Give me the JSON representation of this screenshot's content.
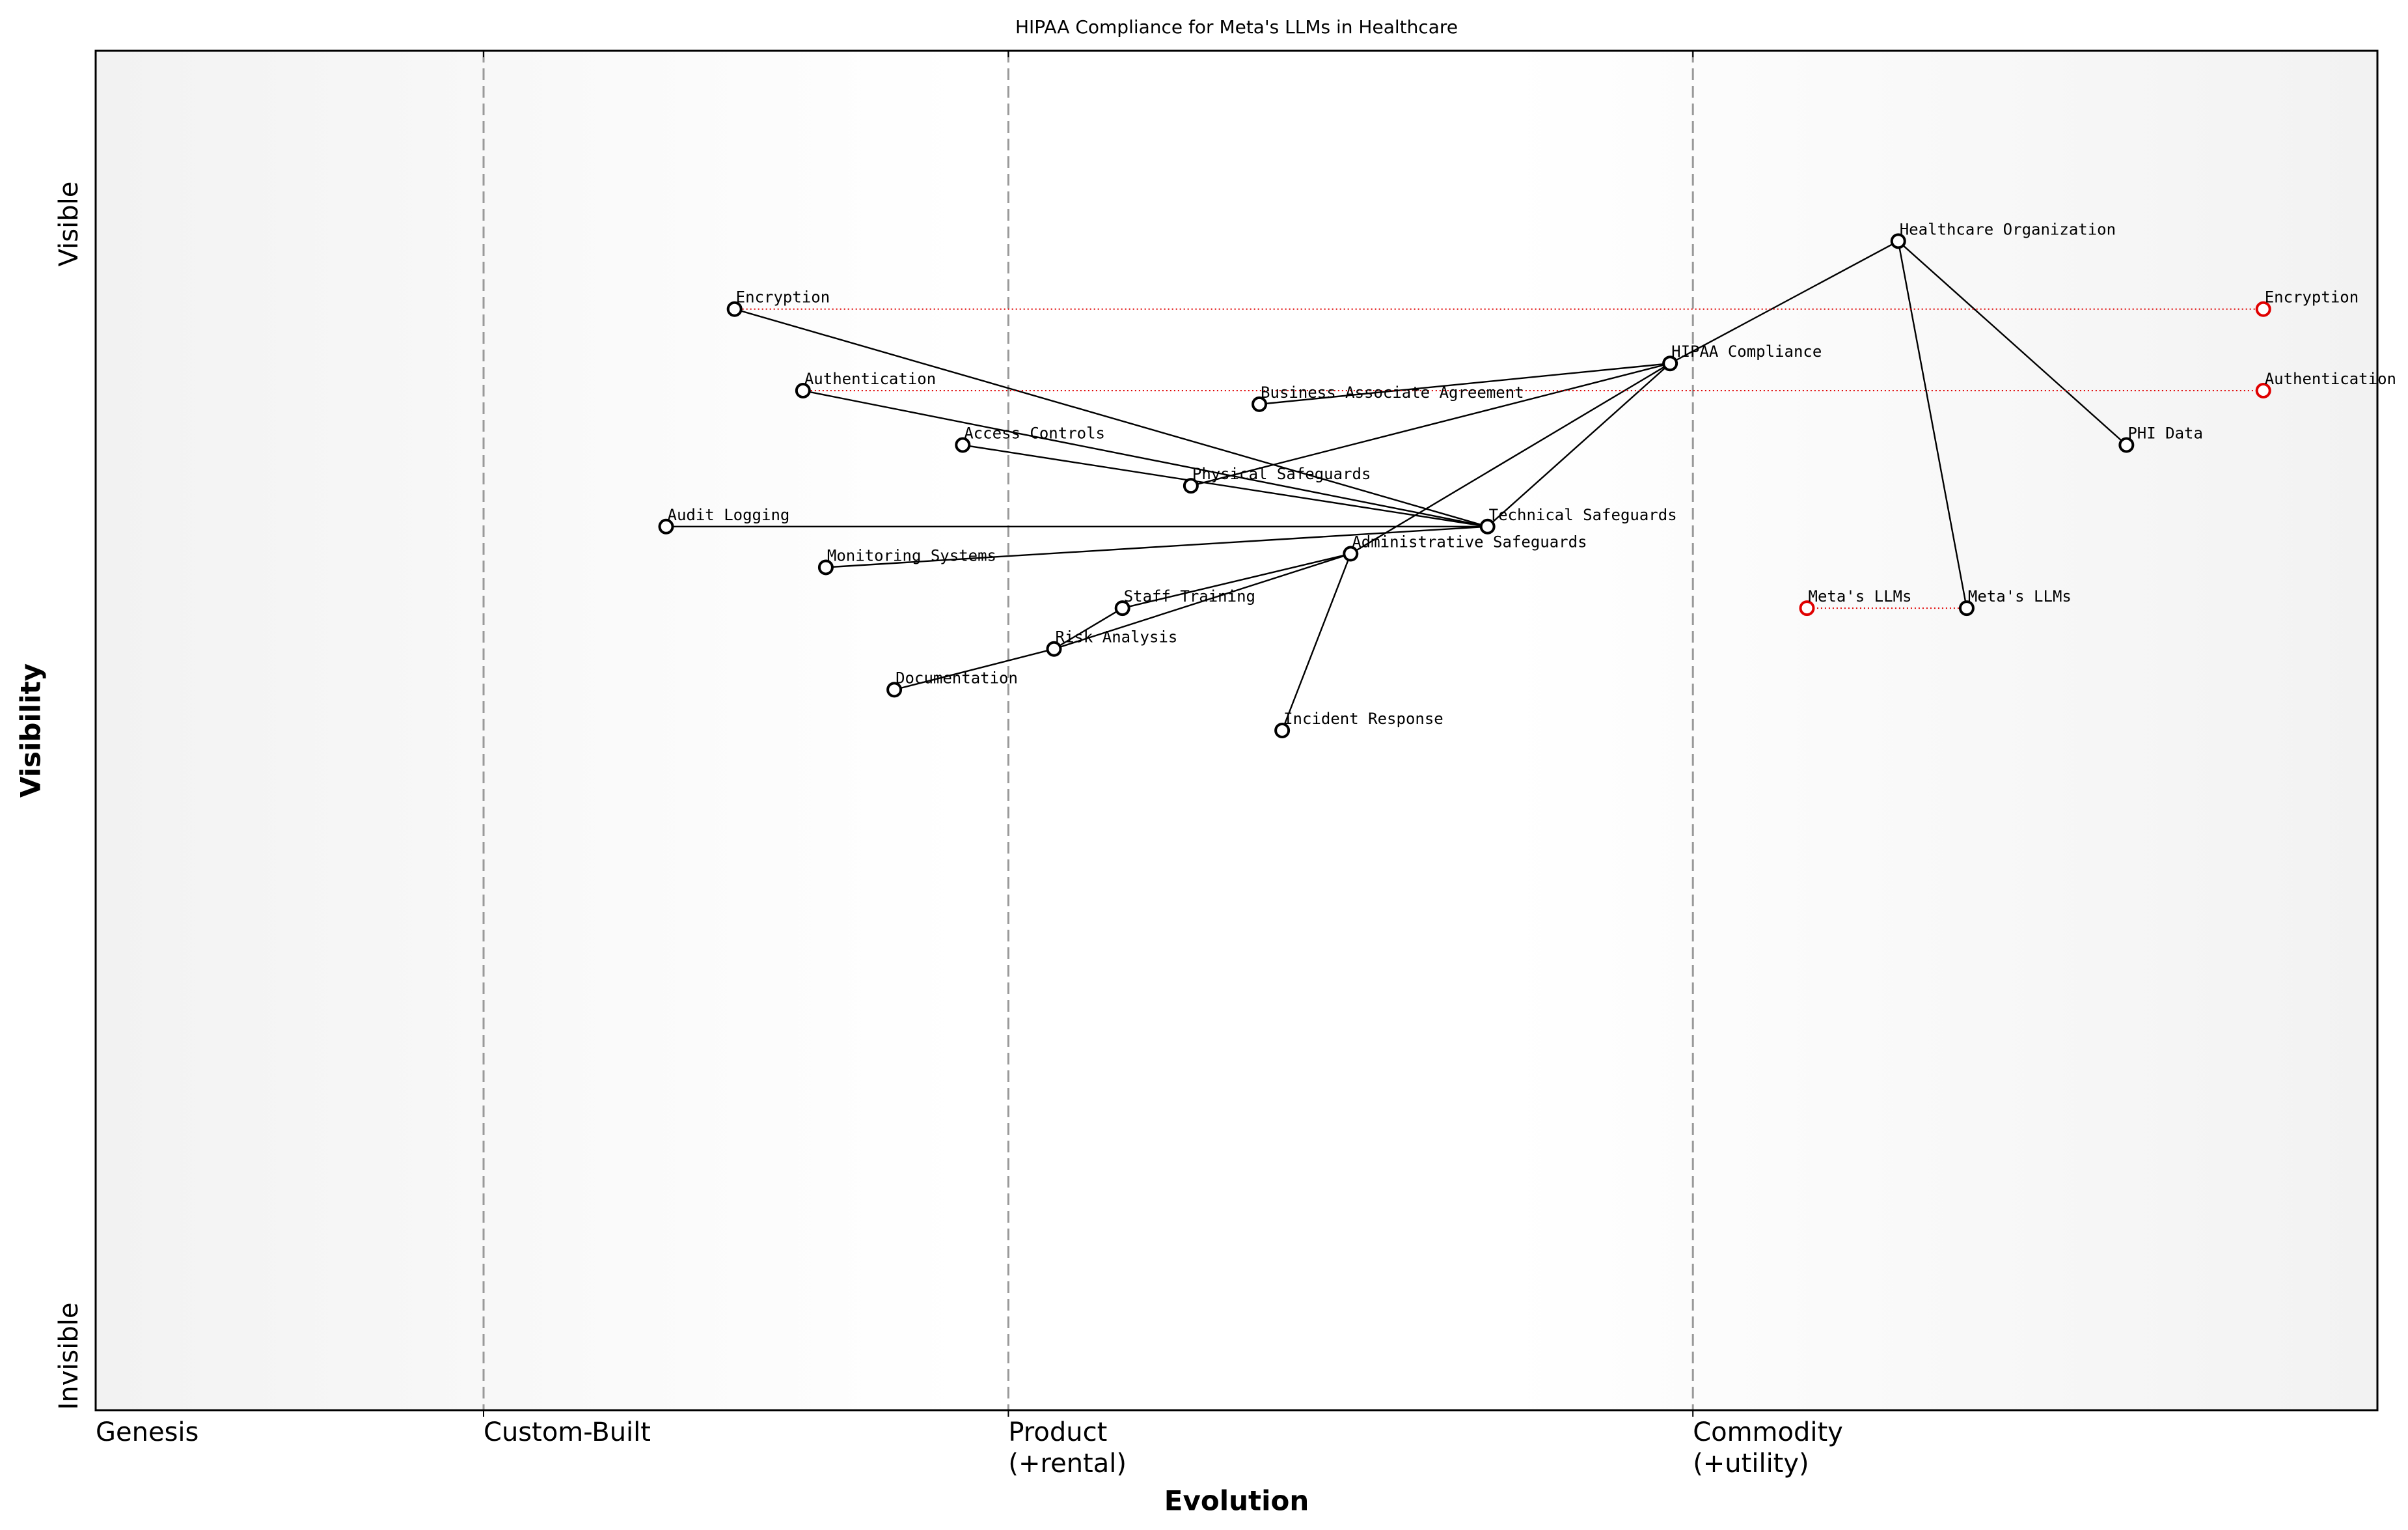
{
  "chart_data": {
    "type": "wardley",
    "title": "HIPAA Compliance for Meta's LLMs in Healthcare",
    "x_label": "Evolution",
    "y_label": "Visibility",
    "y_stage_labels": {
      "top": "Visible",
      "bottom": "Invisible"
    },
    "xlim": [
      0,
      1
    ],
    "ylim": [
      0,
      1
    ],
    "xticks": [
      {
        "value": 0,
        "label": "Genesis"
      },
      {
        "value": 0.17,
        "label": "Custom-Built"
      },
      {
        "value": 0.4,
        "label": "Product",
        "sublabel": "(+rental)"
      },
      {
        "value": 0.7,
        "label": "Commodity",
        "sublabel": "(+utility)"
      }
    ],
    "node_color": "#000000",
    "evolve_color": "#e00000",
    "nodes": [
      {
        "name": "Healthcare Organization",
        "evolution": 0.79,
        "visibility": 0.86
      },
      {
        "name": "HIPAA Compliance",
        "evolution": 0.69,
        "visibility": 0.77
      },
      {
        "name": "PHI Data",
        "evolution": 0.89,
        "visibility": 0.71
      },
      {
        "name": "Meta's LLMs",
        "evolution": 0.82,
        "visibility": 0.59
      },
      {
        "name": "Technical Safeguards",
        "evolution": 0.61,
        "visibility": 0.65
      },
      {
        "name": "Administrative Safeguards",
        "evolution": 0.55,
        "visibility": 0.63
      },
      {
        "name": "Business Associate Agreement",
        "evolution": 0.51,
        "visibility": 0.74
      },
      {
        "name": "Physical Safeguards",
        "evolution": 0.48,
        "visibility": 0.68
      },
      {
        "name": "Encryption",
        "evolution": 0.28,
        "visibility": 0.81
      },
      {
        "name": "Authentication",
        "evolution": 0.31,
        "visibility": 0.75
      },
      {
        "name": "Access Controls",
        "evolution": 0.38,
        "visibility": 0.71
      },
      {
        "name": "Audit Logging",
        "evolution": 0.25,
        "visibility": 0.65
      },
      {
        "name": "Monitoring Systems",
        "evolution": 0.32,
        "visibility": 0.62
      },
      {
        "name": "Staff Training",
        "evolution": 0.45,
        "visibility": 0.59
      },
      {
        "name": "Risk Analysis",
        "evolution": 0.42,
        "visibility": 0.56
      },
      {
        "name": "Documentation",
        "evolution": 0.35,
        "visibility": 0.53
      },
      {
        "name": "Incident Response",
        "evolution": 0.52,
        "visibility": 0.5
      }
    ],
    "edges": [
      [
        "Healthcare Organization",
        "HIPAA Compliance"
      ],
      [
        "Healthcare Organization",
        "PHI Data"
      ],
      [
        "Healthcare Organization",
        "Meta's LLMs"
      ],
      [
        "HIPAA Compliance",
        "Technical Safeguards"
      ],
      [
        "HIPAA Compliance",
        "Administrative Safeguards"
      ],
      [
        "HIPAA Compliance",
        "Physical Safeguards"
      ],
      [
        "HIPAA Compliance",
        "Business Associate Agreement"
      ],
      [
        "Technical Safeguards",
        "Encryption"
      ],
      [
        "Technical Safeguards",
        "Authentication"
      ],
      [
        "Technical Safeguards",
        "Access Controls"
      ],
      [
        "Technical Safeguards",
        "Audit Logging"
      ],
      [
        "Technical Safeguards",
        "Monitoring Systems"
      ],
      [
        "Administrative Safeguards",
        "Staff Training"
      ],
      [
        "Administrative Safeguards",
        "Risk Analysis"
      ],
      [
        "Administrative Safeguards",
        "Incident Response"
      ],
      [
        "Risk Analysis",
        "Staff Training"
      ],
      [
        "Risk Analysis",
        "Documentation"
      ]
    ],
    "evolve": [
      {
        "name": "Encryption",
        "evolution": 0.95,
        "visibility": 0.81
      },
      {
        "name": "Authentication",
        "evolution": 0.95,
        "visibility": 0.75
      },
      {
        "name": "Meta's LLMs",
        "evolution": 0.75,
        "visibility": 0.59
      }
    ]
  }
}
